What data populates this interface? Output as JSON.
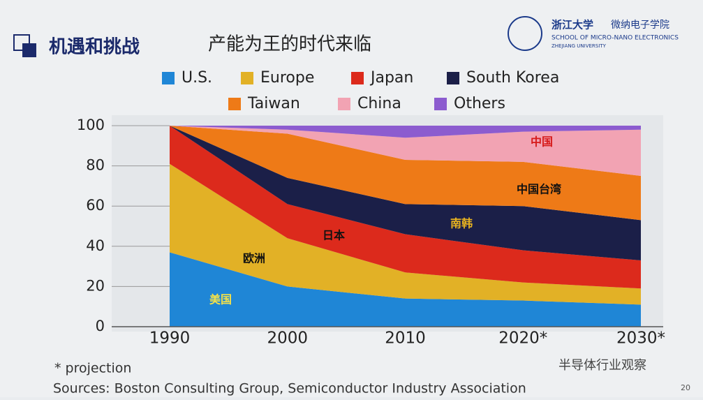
{
  "header": {
    "section": "机遇和挑战",
    "title": "产能为王的时代来临",
    "logo_cn": "浙江大学",
    "school_cn": "微纳电子学院",
    "school_en": "SCHOOL OF MICRO-NANO ELECTRONICS",
    "university_en": "ZHEJIANG UNIVERSITY"
  },
  "chart_data": {
    "type": "stacked_area",
    "categories": [
      "1990",
      "2000",
      "2010",
      "2020*",
      "2030*"
    ],
    "series": [
      {
        "name": "U.S.",
        "color": "#1f86d6",
        "values": [
          37,
          20,
          14,
          13,
          11
        ]
      },
      {
        "name": "Europe",
        "color": "#e2b126",
        "values": [
          44,
          24,
          13,
          9,
          8
        ]
      },
      {
        "name": "Japan",
        "color": "#dc2a1c",
        "values": [
          19,
          17,
          19,
          16,
          14
        ]
      },
      {
        "name": "South Korea",
        "color": "#1b1f48",
        "values": [
          0,
          13,
          15,
          22,
          20
        ]
      },
      {
        "name": "Taiwan",
        "color": "#ee7a17",
        "values": [
          0,
          22,
          22,
          22,
          22
        ]
      },
      {
        "name": "China",
        "color": "#f2a3b3",
        "values": [
          0,
          2,
          11,
          15,
          23
        ]
      },
      {
        "name": "Others",
        "color": "#8c5ccf",
        "values": [
          0,
          2,
          6,
          3,
          2
        ]
      }
    ],
    "ylim": [
      0,
      100
    ],
    "yticks": [
      0,
      20,
      40,
      60,
      80,
      100
    ],
    "annotations": [
      "美国",
      "欧洲",
      "日本",
      "南韩",
      "中国台湾",
      "中国"
    ]
  },
  "footer": {
    "note": "* projection",
    "sources": "Sources: Boston Consulting Group, Semiconductor Industry Association",
    "watermark": "半导体行业观察",
    "page": "20"
  }
}
